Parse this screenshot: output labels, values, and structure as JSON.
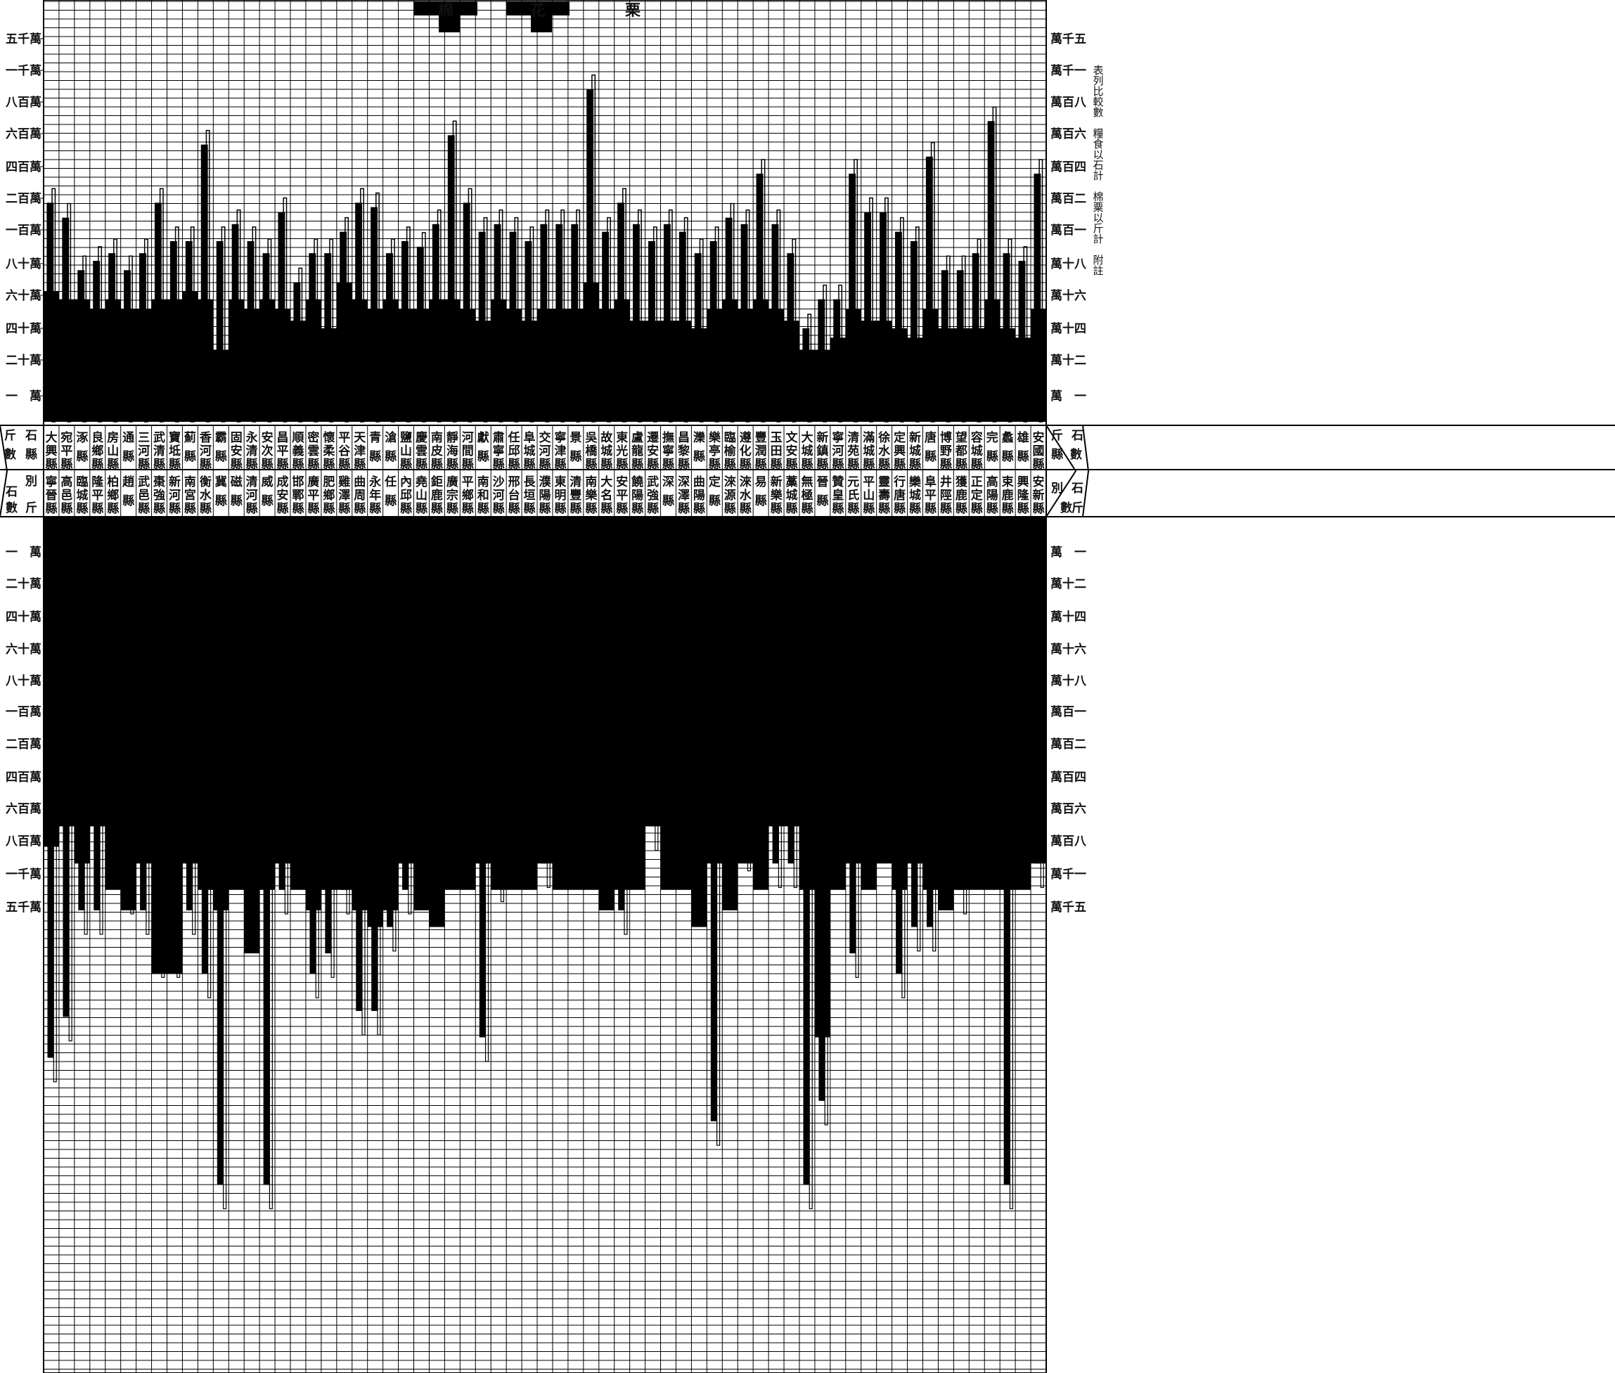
{
  "chart_data": {
    "type": "bar",
    "title_chars": [
      "棉",
      "花",
      "栗"
    ],
    "right_note": "表列比較數　糧食以石計　棉粟以斤計　附註",
    "side_labels": {
      "left_top": [
        "斤",
        "石",
        "數",
        "縣"
      ],
      "left_bottom": [
        "石",
        "別",
        "數",
        "斤"
      ],
      "right_top": [
        "斤",
        "石",
        "數",
        "縣"
      ],
      "right_bottom": [
        "別",
        "石",
        "數",
        "斤"
      ]
    },
    "scale": "log",
    "y_ticks_left": [
      "五千萬",
      "一千萬",
      "八百萬",
      "六百萬",
      "四百萬",
      "二百萬",
      "一百萬",
      "八十萬",
      "六十萬",
      "四十萬",
      "二十萬",
      "一　萬"
    ],
    "y_ticks_right": [
      "萬千五",
      "萬千一",
      "萬百八",
      "萬百六",
      "萬百四",
      "萬百二",
      "萬百一",
      "萬十八",
      "萬十六",
      "萬十四",
      "萬十二",
      "萬　一"
    ],
    "y_ticks_bottom_left": [
      "一　萬",
      "二十萬",
      "四十萬",
      "六十萬",
      "八十萬",
      "一百萬",
      "二百萬",
      "四百萬",
      "六百萬",
      "八百萬",
      "一千萬",
      "五千萬"
    ],
    "y_ticks_bottom_right": [
      "萬　一",
      "萬十二",
      "萬十四",
      "萬十六",
      "萬十八",
      "萬百一",
      "萬百二",
      "萬百四",
      "萬百六",
      "萬百八",
      "萬千一",
      "萬千五"
    ],
    "categories_top": [
      "大興縣",
      "宛平縣",
      "涿縣",
      "良鄉縣",
      "房山縣",
      "通縣",
      "三河縣",
      "武清縣",
      "寶坻縣",
      "薊縣",
      "香河縣",
      "霸縣",
      "固安縣",
      "永清縣",
      "安次縣",
      "昌平縣",
      "順義縣",
      "密雲縣",
      "懷柔縣",
      "平谷縣",
      "天津縣",
      "青縣",
      "滄縣",
      "鹽山縣",
      "慶雲縣",
      "南皮縣",
      "靜海縣",
      "河間縣",
      "獻縣",
      "肅寧縣",
      "任邱縣",
      "阜城縣",
      "交河縣",
      "寧津縣",
      "景縣",
      "吳橋縣",
      "故城縣",
      "東光縣",
      "盧龍縣",
      "遷安縣",
      "撫寧縣",
      "昌黎縣",
      "灤縣",
      "樂亭縣",
      "臨榆縣",
      "遵化縣",
      "豐潤縣",
      "玉田縣",
      "文安縣",
      "大城縣",
      "新鎮縣",
      "寧河縣",
      "清苑縣",
      "滿城縣",
      "徐水縣",
      "定興縣",
      "新城縣",
      "唐縣",
      "博野縣",
      "望都縣",
      "容城縣",
      "完縣",
      "蠡縣",
      "雄縣",
      "安國縣"
    ],
    "categories_bottom": [
      "寧晉縣",
      "高邑縣",
      "臨城縣",
      "隆平縣",
      "柏鄉縣",
      "趙縣",
      "武邑縣",
      "棗強縣",
      "新河縣",
      "南宮縣",
      "衡水縣",
      "冀縣",
      "磁縣",
      "清河縣",
      "威縣",
      "成安縣",
      "邯鄲縣",
      "廣平縣",
      "肥鄉縣",
      "雞澤縣",
      "曲周縣",
      "永年縣",
      "任縣",
      "內邱縣",
      "堯山縣",
      "鉅鹿縣",
      "廣宗縣",
      "平鄉縣",
      "南和縣",
      "沙河縣",
      "邢台縣",
      "長垣縣",
      "濮陽縣",
      "東明縣",
      "清豐縣",
      "南樂縣",
      "大名縣",
      "安平縣",
      "饒陽縣",
      "武強縣",
      "深縣",
      "深澤縣",
      "曲陽縣",
      "定縣",
      "淶源縣",
      "淶水縣",
      "易縣",
      "新樂縣",
      "藁城縣",
      "無極縣",
      "晉縣",
      "贊皇縣",
      "元氏縣",
      "平山縣",
      "靈壽縣",
      "行唐縣",
      "欒城縣",
      "阜平縣",
      "井陘縣",
      "獲鹿縣",
      "正定縣",
      "高陽縣",
      "束鹿縣",
      "興隆縣",
      "安新縣"
    ],
    "series": [
      {
        "values": [
          1.0,
          0.7,
          0.2,
          0.25,
          0.3,
          0.2,
          0.3,
          1.0,
          0.4,
          0.4,
          4.0,
          0.4,
          0.6,
          0.4,
          0.3,
          0.8,
          0.15,
          0.3,
          0.3,
          0.5,
          1.0,
          0.9,
          0.3,
          0.4,
          0.35,
          0.6,
          5.0,
          1.0,
          0.5,
          0.6,
          0.5,
          0.4,
          0.6,
          0.6,
          0.6,
          15.0,
          0.5,
          1.0,
          0.6,
          0.4,
          0.6,
          0.5,
          0.3,
          0.4,
          0.7,
          0.6,
          2.0,
          0.6,
          0.3,
          0.05,
          0.1,
          0.1,
          2.0,
          0.8,
          0.8,
          0.5,
          0.4,
          3.0,
          0.2,
          0.2,
          0.3,
          7.0,
          0.3,
          0.25,
          2.0
        ]
      },
      {
        "values": [
          0.12,
          0.1,
          0.1,
          0.08,
          0.1,
          0.08,
          0.08,
          0.1,
          0.1,
          0.12,
          0.1,
          0.03,
          0.1,
          0.08,
          0.1,
          0.08,
          0.06,
          0.1,
          0.05,
          0.15,
          0.1,
          0.08,
          0.1,
          0.08,
          0.08,
          0.1,
          0.1,
          0.08,
          0.06,
          0.1,
          0.08,
          0.06,
          0.08,
          0.08,
          0.08,
          0.15,
          0.08,
          0.1,
          0.06,
          0.06,
          0.06,
          0.06,
          0.05,
          0.08,
          0.1,
          0.08,
          0.1,
          0.08,
          0.06,
          0.03,
          0.03,
          0.04,
          0.08,
          0.06,
          0.06,
          0.05,
          0.04,
          0.08,
          0.05,
          0.05,
          0.05,
          0.1,
          0.05,
          0.04,
          0.08
        ]
      },
      {
        "values": [
          2.5,
          1.6,
          0.5,
          0.5,
          0.15,
          0.4,
          0.5,
          0.8,
          0.8,
          0.5,
          1.0,
          10.0,
          0.3,
          0.5,
          10.0,
          0.4,
          0.25,
          1.0,
          0.8,
          0.4,
          1.5,
          1.5,
          0.6,
          0.4,
          0.2,
          0.2,
          0.2,
          0.25,
          2.0,
          0.35,
          0.2,
          0.2,
          0.3,
          0.2,
          0.2,
          0.3,
          0.3,
          0.5,
          0.2,
          0.2,
          0.25,
          0.3,
          0.3,
          5.0,
          0.3,
          0.25,
          0.2,
          0.3,
          0.3,
          10.0,
          4.0,
          0.1,
          0.8,
          0.2,
          0.2,
          1.0,
          0.6,
          0.6,
          0.2,
          0.4,
          0.1,
          0.3,
          10.0,
          0.2,
          0.3
        ]
      },
      {
        "values": [
          0.25,
          0.2,
          0.3,
          0.2,
          0.4,
          0.5,
          0.3,
          1.0,
          1.0,
          0.3,
          0.4,
          0.5,
          0.4,
          0.8,
          0.4,
          0.3,
          0.4,
          0.5,
          0.4,
          0.4,
          0.5,
          0.6,
          0.5,
          0.3,
          0.5,
          0.6,
          0.4,
          0.4,
          0.3,
          0.4,
          0.4,
          0.4,
          0.3,
          0.4,
          0.4,
          0.4,
          0.5,
          0.4,
          0.4,
          0.2,
          0.4,
          0.4,
          0.6,
          0.3,
          0.5,
          0.3,
          0.4,
          0.2,
          0.2,
          0.4,
          2.0,
          0.4,
          0.3,
          0.4,
          0.3,
          0.4,
          0.3,
          0.4,
          0.5,
          0.4,
          0.4,
          0.4,
          0.4,
          0.4,
          0.3
        ]
      }
    ]
  }
}
